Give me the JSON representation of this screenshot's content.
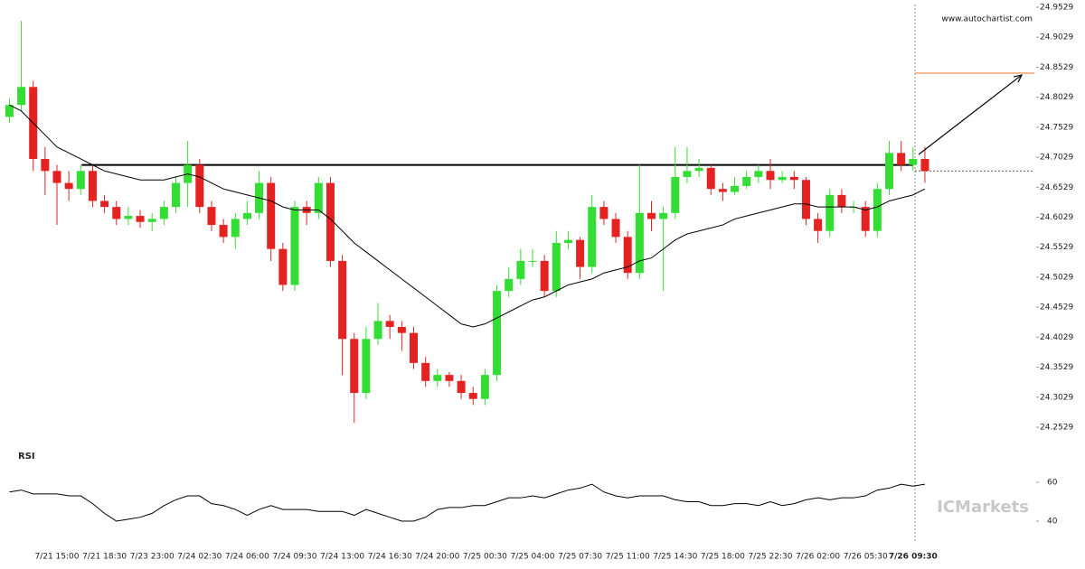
{
  "chart_data": {
    "type": "candlestick",
    "website": "www.autochartist.com",
    "watermark": "ICMarkets",
    "categories": [
      null,
      null,
      null,
      null,
      "7/21 15:00",
      null,
      null,
      null,
      "7/21 18:30",
      null,
      null,
      null,
      "7/23 23:00",
      null,
      null,
      null,
      "7/24 02:30",
      null,
      null,
      null,
      "7/24 06:00",
      null,
      null,
      null,
      "7/24 09:30",
      null,
      null,
      null,
      "7/24 13:00",
      null,
      null,
      null,
      "7/24 16:30",
      null,
      null,
      null,
      "7/24 20:00",
      null,
      null,
      null,
      "7/25 00:30",
      null,
      null,
      null,
      "7/25 04:00",
      null,
      null,
      null,
      "7/25 07:30",
      null,
      null,
      null,
      "7/25 11:00",
      null,
      null,
      null,
      "7/25 14:30",
      null,
      null,
      null,
      "7/25 18:00",
      null,
      null,
      null,
      "7/25 22:30",
      null,
      null,
      null,
      "7/26 02:00",
      null,
      null,
      null,
      "7/26 05:30",
      null,
      null,
      null,
      "7/26 09:30",
      null
    ],
    "open": [
      24.77,
      24.79,
      24.82,
      24.7,
      24.68,
      24.66,
      24.65,
      24.68,
      24.63,
      24.62,
      24.6,
      24.605,
      24.595,
      24.6,
      24.62,
      24.66,
      24.69,
      24.62,
      24.59,
      24.57,
      24.6,
      24.61,
      24.66,
      24.55,
      24.49,
      24.62,
      24.61,
      24.66,
      24.53,
      24.4,
      24.31,
      24.4,
      24.43,
      24.42,
      24.41,
      24.36,
      24.33,
      24.34,
      24.33,
      24.31,
      24.3,
      24.34,
      24.48,
      24.5,
      24.53,
      24.53,
      24.48,
      24.56,
      24.565,
      24.52,
      24.62,
      24.6,
      24.57,
      24.51,
      24.61,
      24.6,
      24.61,
      24.67,
      24.68,
      24.685,
      24.65,
      24.645,
      24.655,
      24.67,
      24.68,
      24.665,
      24.67,
      24.665,
      24.6,
      24.58,
      24.64,
      24.62,
      24.62,
      24.58,
      24.65,
      24.71,
      24.69,
      24.7
    ],
    "high": [
      24.8,
      24.93,
      24.83,
      24.72,
      24.69,
      24.68,
      24.69,
      24.69,
      24.64,
      24.63,
      24.62,
      24.615,
      24.61,
      24.63,
      24.67,
      24.73,
      24.7,
      24.63,
      24.6,
      24.61,
      24.63,
      24.68,
      24.67,
      24.56,
      24.63,
      24.63,
      24.67,
      24.67,
      24.54,
      24.41,
      24.42,
      24.46,
      24.44,
      24.43,
      24.42,
      24.37,
      24.35,
      24.345,
      24.34,
      24.32,
      24.35,
      24.49,
      24.52,
      24.55,
      24.55,
      24.54,
      24.58,
      24.58,
      24.57,
      24.64,
      24.63,
      24.61,
      24.58,
      24.69,
      24.63,
      24.62,
      24.72,
      24.72,
      24.7,
      24.69,
      24.66,
      24.67,
      24.68,
      24.69,
      24.7,
      24.68,
      24.68,
      24.67,
      24.61,
      24.65,
      24.65,
      24.63,
      24.63,
      24.66,
      24.73,
      24.73,
      24.72,
      24.72
    ],
    "low": [
      24.76,
      24.78,
      24.68,
      24.64,
      24.59,
      24.63,
      24.64,
      24.62,
      24.61,
      24.59,
      24.59,
      24.585,
      24.58,
      24.59,
      24.61,
      24.62,
      24.61,
      24.58,
      24.56,
      24.55,
      24.59,
      24.6,
      24.53,
      24.48,
      24.48,
      24.59,
      24.6,
      24.52,
      24.34,
      24.26,
      24.3,
      24.39,
      24.4,
      24.38,
      24.35,
      24.32,
      24.32,
      24.32,
      24.3,
      24.29,
      24.29,
      24.33,
      24.47,
      24.49,
      24.52,
      24.47,
      24.47,
      24.55,
      24.5,
      24.51,
      24.59,
      24.56,
      24.5,
      24.5,
      24.58,
      24.48,
      24.6,
      24.66,
      24.67,
      24.64,
      24.63,
      24.64,
      24.65,
      24.66,
      24.65,
      24.66,
      24.65,
      24.59,
      24.56,
      24.57,
      24.61,
      24.61,
      24.57,
      24.57,
      24.64,
      24.68,
      24.68,
      24.66
    ],
    "close": [
      24.79,
      24.82,
      24.7,
      24.68,
      24.66,
      24.65,
      24.68,
      24.63,
      24.62,
      24.6,
      24.605,
      24.595,
      24.6,
      24.62,
      24.66,
      24.69,
      24.62,
      24.59,
      24.57,
      24.6,
      24.61,
      24.66,
      24.55,
      24.49,
      24.62,
      24.61,
      24.66,
      24.53,
      24.4,
      24.31,
      24.4,
      24.43,
      24.42,
      24.41,
      24.36,
      24.33,
      24.34,
      24.33,
      24.31,
      24.3,
      24.34,
      24.48,
      24.5,
      24.53,
      24.53,
      24.48,
      24.56,
      24.565,
      24.52,
      24.62,
      24.6,
      24.57,
      24.51,
      24.61,
      24.6,
      24.61,
      24.67,
      24.68,
      24.685,
      24.65,
      24.645,
      24.655,
      24.67,
      24.68,
      24.665,
      24.67,
      24.665,
      24.6,
      24.58,
      24.64,
      24.62,
      24.62,
      24.58,
      24.65,
      24.71,
      24.69,
      24.7,
      24.68
    ],
    "moving_average": [
      24.79,
      24.78,
      24.76,
      24.74,
      24.72,
      24.71,
      24.7,
      24.69,
      24.68,
      24.675,
      24.67,
      24.665,
      24.665,
      24.665,
      24.67,
      24.675,
      24.67,
      24.66,
      24.65,
      24.645,
      24.64,
      24.635,
      24.63,
      24.62,
      24.615,
      24.615,
      24.615,
      24.6,
      24.58,
      24.56,
      24.545,
      24.53,
      24.515,
      24.5,
      24.485,
      24.47,
      24.455,
      24.44,
      24.425,
      24.42,
      24.425,
      24.435,
      24.445,
      24.455,
      24.465,
      24.47,
      24.48,
      24.49,
      24.495,
      24.5,
      24.51,
      24.515,
      24.52,
      24.53,
      24.535,
      24.55,
      24.565,
      24.575,
      24.58,
      24.585,
      24.59,
      24.6,
      24.605,
      24.61,
      24.615,
      24.62,
      24.625,
      24.625,
      24.62,
      24.62,
      24.62,
      24.62,
      24.615,
      24.62,
      24.63,
      24.635,
      24.64,
      24.65
    ],
    "up_color": "#33dd33",
    "down_color": "#e52222",
    "support_level": 24.69,
    "target_level": 24.8429,
    "target_color": "#e8701e",
    "ylim": [
      24.2273,
      24.9574
    ],
    "yticks": [
      24.9529,
      24.9029,
      24.8529,
      24.8029,
      24.7529,
      24.7029,
      24.6529,
      24.6029,
      24.5529,
      24.5029,
      24.4529,
      24.4029,
      24.3529,
      24.3029,
      24.2529
    ],
    "rsi": {
      "title": "RSI",
      "values": [
        55,
        56,
        54,
        54,
        54,
        53,
        53,
        49,
        44,
        40,
        41,
        42,
        44,
        48,
        51,
        53,
        53,
        49,
        48,
        46,
        43,
        46,
        48,
        46,
        46,
        46,
        45,
        45,
        45,
        43,
        46,
        44,
        42,
        40,
        40,
        42,
        46,
        47,
        47,
        48,
        48,
        50,
        52,
        52,
        53,
        52,
        54,
        56,
        57,
        59,
        55,
        53,
        52,
        53,
        53,
        53,
        51,
        50,
        50,
        48,
        48,
        49,
        49,
        48,
        50,
        48,
        49,
        51,
        52,
        51,
        52,
        52,
        53,
        56,
        57,
        59,
        58,
        59
      ],
      "ylim": [
        29.3,
        75.8
      ],
      "yticks": [
        60,
        40
      ]
    }
  }
}
